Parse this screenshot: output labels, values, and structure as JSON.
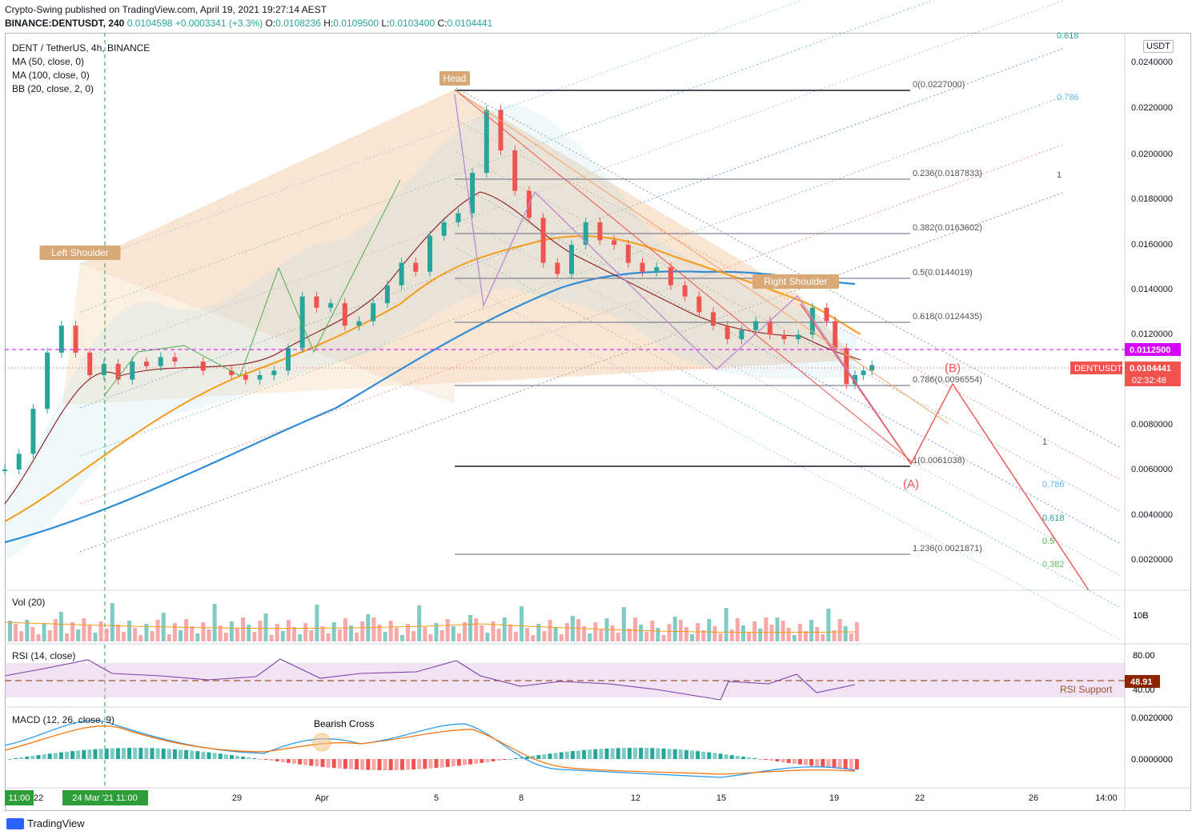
{
  "header": {
    "published": "Crypto-Swing published on TradingView.com, April 19, 2021 19:27:14 AEST",
    "symbol_line": "BINANCE:DENTUSDT, 240",
    "price": "0.0104598",
    "change": "+0.0003341 (+3.3%)",
    "o_label": "O:",
    "o": "0.0108236",
    "h_label": "H:",
    "h": "0.0109500",
    "l_label": "L:",
    "l": "0.0103400",
    "c_label": "C:",
    "c": "0.0104441"
  },
  "legend": {
    "title": "DENT / TetherUS, 4h, BINANCE",
    "ma50": "MA (50, close, 0)",
    "ma100": "MA (100, close, 0)",
    "bb": "BB (20, close, 2, 0)",
    "vol": "Vol (20)",
    "rsi": "RSI (14, close)",
    "macd": "MACD (12, 26, close, 9)"
  },
  "currency_badge": "USDT",
  "brand": "TradingView",
  "colors": {
    "up": "#26a69a",
    "down": "#ef5350",
    "ma50": "#f59c1a",
    "ma100": "#2f8cd8",
    "bb": "#8b1a1a",
    "fib": "#434651",
    "rsi": "#7e3fa8",
    "macd_line": "#2196f3",
    "signal": "#ff6d00"
  },
  "chart_data": [
    {
      "type": "candlestick",
      "title": "DENT / TetherUS, 4h, BINANCE",
      "ylim": [
        0.0,
        0.0245
      ],
      "y_ticks": [
        0.002,
        0.004,
        0.006,
        0.008,
        0.01,
        0.012,
        0.014,
        0.016,
        0.018,
        0.02,
        0.022,
        0.024
      ],
      "y_tick_labels": [
        "0.0020000",
        "0.0040000",
        "0.0060000",
        "0.0080000",
        "0.0100000",
        "0.0120000",
        "0.0140000",
        "0.0160000",
        "0.0180000",
        "0.0200000",
        "0.0220000",
        "0.0240000"
      ],
      "x_ticks": [
        "22",
        "24 Mar '21",
        "29",
        "Apr",
        "5",
        "8",
        "12",
        "15",
        "19",
        "22",
        "26",
        "14:00"
      ],
      "x_tick_days": [
        22,
        24,
        29,
        32,
        36,
        39,
        43,
        46,
        50,
        53,
        57,
        60.6
      ],
      "x_highlight_labels": [
        "11:00",
        "24 Mar '21",
        "11:00"
      ],
      "last_price_label": "DENTUSDT",
      "last_price": 0.0104441,
      "last_price_text": "0.0104441",
      "countdown": "02:32:48",
      "neckline_price": 0.01125,
      "neckline_text": "0.0112500",
      "close_path": [
        [
          20.0,
          0.0058
        ],
        [
          20.5,
          0.0065
        ],
        [
          21.0,
          0.0085
        ],
        [
          21.5,
          0.011
        ],
        [
          22.0,
          0.0122
        ],
        [
          22.5,
          0.011
        ],
        [
          23.0,
          0.01
        ],
        [
          23.5,
          0.0105
        ],
        [
          24.0,
          0.0098
        ],
        [
          24.5,
          0.0106
        ],
        [
          25.0,
          0.0104
        ],
        [
          25.5,
          0.0108
        ],
        [
          26.0,
          0.0106
        ],
        [
          27.0,
          0.0102
        ],
        [
          28.0,
          0.01
        ],
        [
          28.5,
          0.0098
        ],
        [
          29.0,
          0.01
        ],
        [
          29.5,
          0.0102
        ],
        [
          30.0,
          0.0112
        ],
        [
          30.5,
          0.0135
        ],
        [
          31.0,
          0.013
        ],
        [
          31.5,
          0.0132
        ],
        [
          32.0,
          0.0122
        ],
        [
          32.5,
          0.0124
        ],
        [
          33.0,
          0.0132
        ],
        [
          33.5,
          0.014
        ],
        [
          34.0,
          0.015
        ],
        [
          34.5,
          0.0146
        ],
        [
          35.0,
          0.0162
        ],
        [
          35.5,
          0.0168
        ],
        [
          36.0,
          0.0172
        ],
        [
          36.5,
          0.019
        ],
        [
          37.0,
          0.0218
        ],
        [
          37.5,
          0.02
        ],
        [
          38.0,
          0.0182
        ],
        [
          38.5,
          0.017
        ],
        [
          39.0,
          0.015
        ],
        [
          39.5,
          0.0145
        ],
        [
          40.0,
          0.0158
        ],
        [
          40.5,
          0.0168
        ],
        [
          41.0,
          0.016
        ],
        [
          41.5,
          0.0158
        ],
        [
          42.0,
          0.015
        ],
        [
          42.5,
          0.0146
        ],
        [
          43.0,
          0.0148
        ],
        [
          43.5,
          0.014
        ],
        [
          44.0,
          0.0135
        ],
        [
          44.5,
          0.0128
        ],
        [
          45.0,
          0.0122
        ],
        [
          45.5,
          0.0116
        ],
        [
          46.0,
          0.012
        ],
        [
          46.5,
          0.0124
        ],
        [
          47.0,
          0.0118
        ],
        [
          47.5,
          0.0116
        ],
        [
          48.0,
          0.0118
        ],
        [
          48.5,
          0.013
        ],
        [
          49.0,
          0.0124
        ],
        [
          49.3,
          0.0112
        ],
        [
          49.7,
          0.0096
        ],
        [
          50.0,
          0.01
        ],
        [
          50.3,
          0.0102
        ],
        [
          50.6,
          0.0104441
        ]
      ],
      "annotations": {
        "left_shoulder": "Left Shoulder",
        "head": "Head",
        "right_shoulder": "Right Shoulder",
        "wave_A": "(A)",
        "wave_B": "(B)"
      },
      "fib_levels": [
        {
          "label": "0(0.0227000)",
          "value": 0.0227
        },
        {
          "label": "0.236(0.0187833)",
          "value": 0.0187833
        },
        {
          "label": "0.382(0.0163602)",
          "value": 0.0163602
        },
        {
          "label": "0.5(0.0144019)",
          "value": 0.0144019
        },
        {
          "label": "0.618(0.0124435)",
          "value": 0.0124435
        },
        {
          "label": "0.786(0.0096554)",
          "value": 0.0096554
        },
        {
          "label": "1(0.0061038)",
          "value": 0.0061038
        },
        {
          "label": "1.236(0.0021871)",
          "value": 0.0021871
        }
      ],
      "fan_labels_up": [
        "0.618",
        "0.786",
        "1"
      ],
      "fan_labels_down": [
        "1",
        "0.786",
        "0.618",
        "0.5",
        "0.382"
      ]
    },
    {
      "type": "bar",
      "title": "Vol (20)",
      "y_tick_labels": [
        "10B"
      ]
    },
    {
      "type": "line",
      "title": "RSI (14, close)",
      "ylim": [
        20,
        90
      ],
      "y_tick_labels": [
        "80.00",
        "40.00"
      ],
      "support_label": "RSI Support",
      "current": 48.91,
      "current_text": "48.91"
    },
    {
      "type": "line",
      "title": "MACD (12, 26, close, 9)",
      "y_tick_labels": [
        "0.0020000",
        "0.0000000"
      ],
      "annotation": "Bearish Cross"
    }
  ]
}
